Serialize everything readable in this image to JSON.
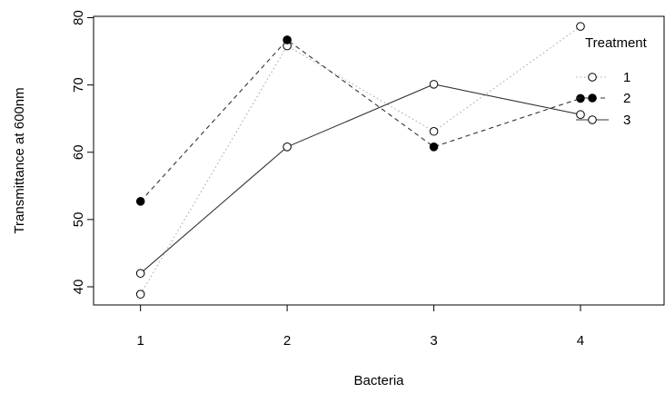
{
  "chart_data": {
    "type": "line",
    "xlabel": "Bacteria",
    "ylabel": "Transmittance at 600nm",
    "x_ticks": [
      "1",
      "2",
      "3",
      "4"
    ],
    "y_ticks": [
      40,
      50,
      60,
      70,
      80
    ],
    "ylim": [
      37.3,
      80.2
    ],
    "xlim": [
      0.68,
      4.57
    ],
    "grid": false,
    "legend": {
      "title": "Treatment",
      "placement": "top-right"
    },
    "series": [
      {
        "name": "1",
        "line_style": "dotted",
        "line_color": "#aaaaaa",
        "marker": "open-circle",
        "x": [
          1,
          2,
          3,
          4
        ],
        "values": [
          38.9,
          75.8,
          63.1,
          78.7
        ]
      },
      {
        "name": "2",
        "line_style": "dashed",
        "line_color": "#333333",
        "marker": "filled-circle",
        "x": [
          1,
          2,
          3,
          4
        ],
        "values": [
          52.7,
          76.7,
          60.8,
          68.0
        ]
      },
      {
        "name": "3",
        "line_style": "solid",
        "line_color": "#333333",
        "marker": "open-circle",
        "x": [
          1,
          2,
          3,
          4
        ],
        "values": [
          42.0,
          60.8,
          70.1,
          65.6
        ]
      }
    ]
  }
}
